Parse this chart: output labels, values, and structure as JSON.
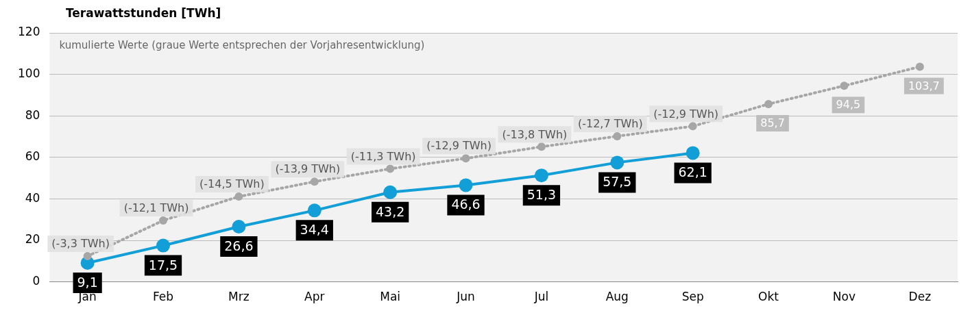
{
  "chart_data": {
    "type": "line",
    "ylabel": "Terawattstunden [TWh]",
    "annotations": [
      "kumulierte Werte (graue Werte entsprechen der Vorjahresentwicklung)",
      {
        "text": "(-3,3 TWh)",
        "x": "Jan",
        "y": 12.4
      },
      {
        "text": "(-12,1 TWh)",
        "x": "Feb",
        "y": 29.6
      },
      {
        "text": "(-14,5 TWh)",
        "x": "Mrz",
        "y": 41.1
      },
      {
        "text": "(-13,9 TWh)",
        "x": "Apr",
        "y": 48.3
      },
      {
        "text": "(-11,3 TWh)",
        "x": "Mai",
        "y": 54.5
      },
      {
        "text": "(-12,9 TWh)",
        "x": "Jun",
        "y": 59.5
      },
      {
        "text": "(-13,8 TWh)",
        "x": "Jul",
        "y": 65.1
      },
      {
        "text": "(-12,7 TWh)",
        "x": "Aug",
        "y": 70.2
      },
      {
        "text": "(-12,9 TWh)",
        "x": "Sep",
        "y": 75.0
      }
    ],
    "categories": [
      "Jan",
      "Feb",
      "Mrz",
      "Apr",
      "Mai",
      "Jun",
      "Jul",
      "Aug",
      "Sep",
      "Okt",
      "Nov",
      "Dez"
    ],
    "series": [
      {
        "color": "#a6a6a6",
        "line_style": "dotted",
        "values": [
          12.4,
          29.6,
          41.1,
          48.3,
          54.5,
          59.5,
          65.1,
          70.2,
          75.0,
          85.7,
          94.5,
          103.7
        ],
        "value_labels": [
          null,
          null,
          null,
          null,
          null,
          null,
          null,
          null,
          null,
          "85,7",
          "94,5",
          "103,7"
        ]
      },
      {
        "color": "#129fd8",
        "line_style": "solid",
        "values": [
          9.1,
          17.5,
          26.6,
          34.4,
          43.2,
          46.6,
          51.3,
          57.5,
          62.1,
          null,
          null,
          null
        ],
        "value_labels": [
          "9,1",
          "17,5",
          "26,6",
          "34,4",
          "43,2",
          "46,6",
          "51,3",
          "57,5",
          "62,1",
          null,
          null,
          null
        ]
      }
    ],
    "ylim": [
      0,
      120
    ],
    "yticks": [
      0,
      20,
      40,
      60,
      80,
      100,
      120
    ],
    "grid": "y",
    "marker": "circle",
    "legend": false
  }
}
